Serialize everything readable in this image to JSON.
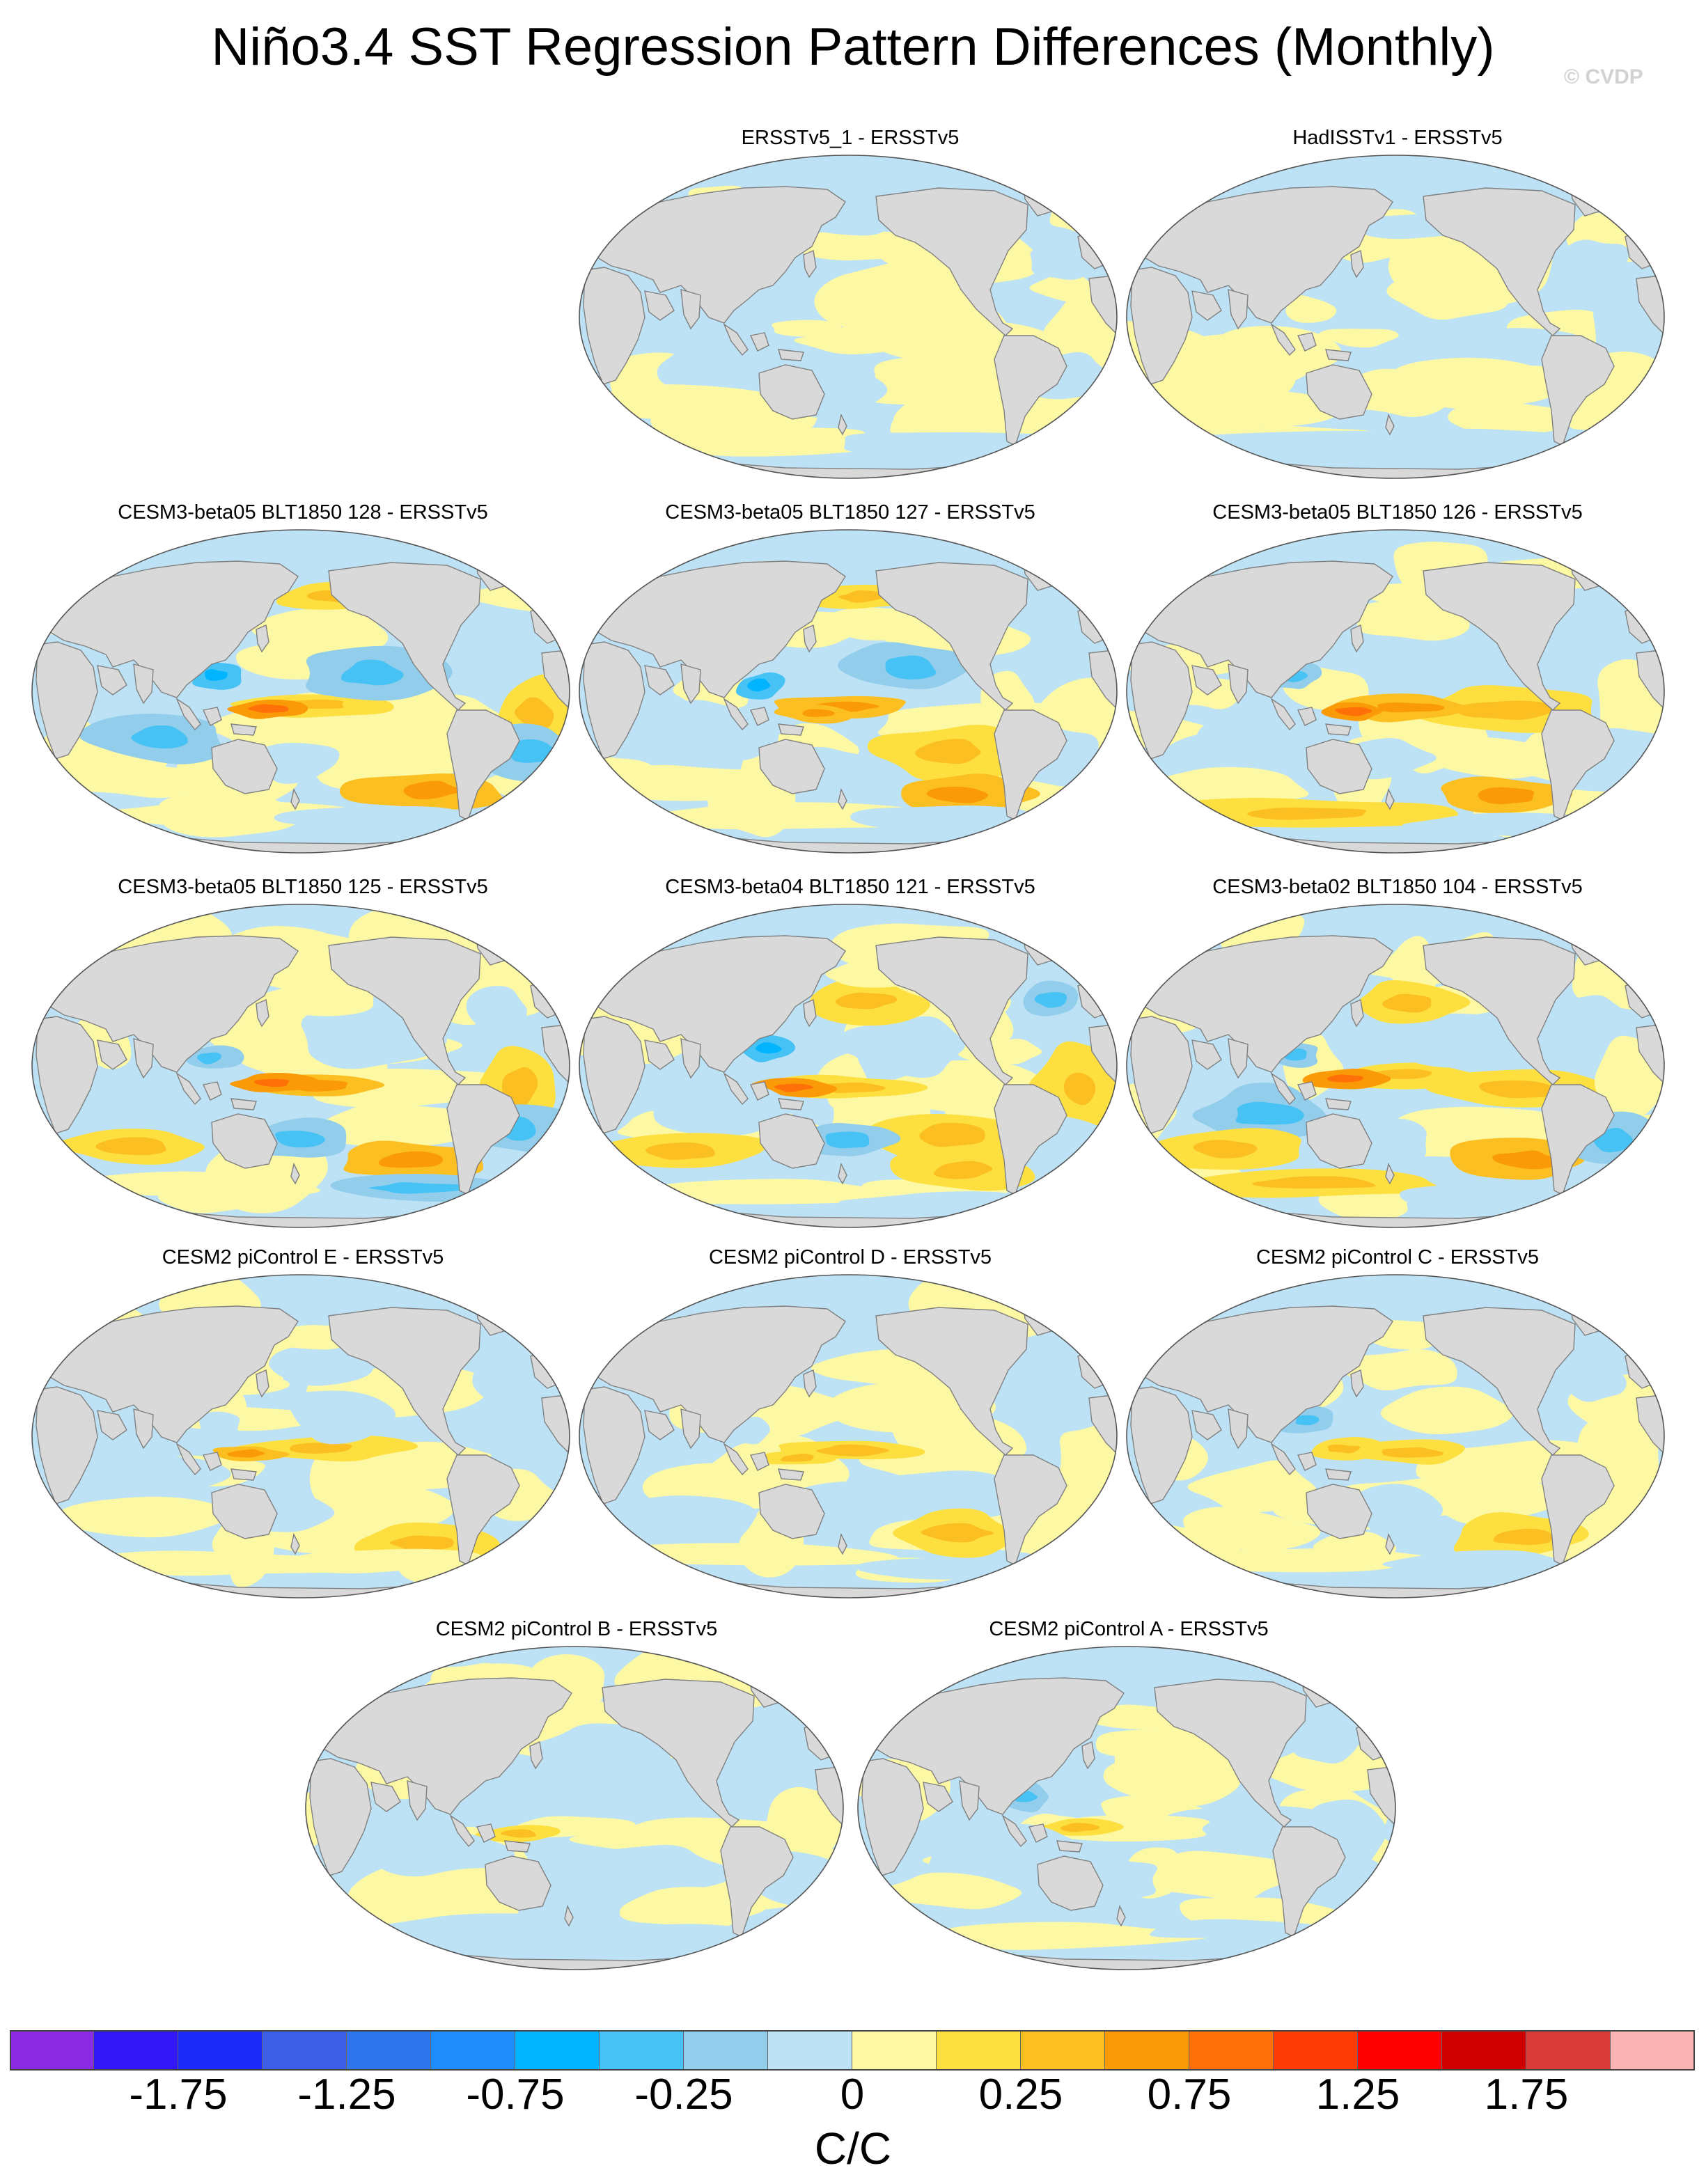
{
  "title": "Niño3.4 SST Regression Pattern Differences (Monthly)",
  "credit": "© CVDP",
  "map": {
    "projection": "Robinson",
    "center": "Pacific",
    "land_color": "#d9d9d9",
    "coast_color": "#808080",
    "no_data_panel": "empty top-left position"
  },
  "panels": [
    {
      "title": "ERSSTv5_1 - ERSSTv5",
      "intensity": "weak"
    },
    {
      "title": "HadISSTv1 - ERSSTv5",
      "intensity": "weak"
    },
    {
      "title": "CESM3-beta05 BLT1850 128 - ERSSTv5",
      "intensity": "strong"
    },
    {
      "title": "CESM3-beta05 BLT1850 127 - ERSSTv5",
      "intensity": "strong"
    },
    {
      "title": "CESM3-beta05 BLT1850 126 - ERSSTv5",
      "intensity": "strong"
    },
    {
      "title": "CESM3-beta05 BLT1850 125 - ERSSTv5",
      "intensity": "strong"
    },
    {
      "title": "CESM3-beta04 BLT1850 121 - ERSSTv5",
      "intensity": "strong"
    },
    {
      "title": "CESM3-beta02 BLT1850 104 - ERSSTv5",
      "intensity": "strong"
    },
    {
      "title": "CESM2 piControl E - ERSSTv5",
      "intensity": "moderate"
    },
    {
      "title": "CESM2 piControl D - ERSSTv5",
      "intensity": "moderate"
    },
    {
      "title": "CESM2 piControl C - ERSSTv5",
      "intensity": "moderate"
    },
    {
      "title": "CESM2 piControl B - ERSSTv5",
      "intensity": "moderate"
    },
    {
      "title": "CESM2 piControl A - ERSSTv5",
      "intensity": "moderate"
    }
  ],
  "colorbar": {
    "units": "C/C",
    "levels": [
      -2,
      -1.75,
      -1.5,
      -1.25,
      -1,
      -0.75,
      -0.5,
      -0.25,
      -0.1,
      0,
      0.1,
      0.25,
      0.5,
      0.75,
      1,
      1.25,
      1.5,
      1.75,
      2
    ],
    "colors": [
      "#8a2be2",
      "#3216f5",
      "#1c28f7",
      "#3c5ee6",
      "#2e75ee",
      "#1e8cfb",
      "#00b4ff",
      "#46c2f5",
      "#92cdec",
      "#bde2f5",
      "#fdf8a4",
      "#fde03f",
      "#fbbf22",
      "#fb9a07",
      "#ff7008",
      "#ff3b06",
      "#ff0000",
      "#d00000",
      "#d93a3a",
      "#fbb4b4"
    ],
    "tick_labels": [
      "-1.75",
      "-1.25",
      "-0.75",
      "-0.25",
      "0",
      "0.25",
      "0.75",
      "1.25",
      "1.75"
    ]
  }
}
